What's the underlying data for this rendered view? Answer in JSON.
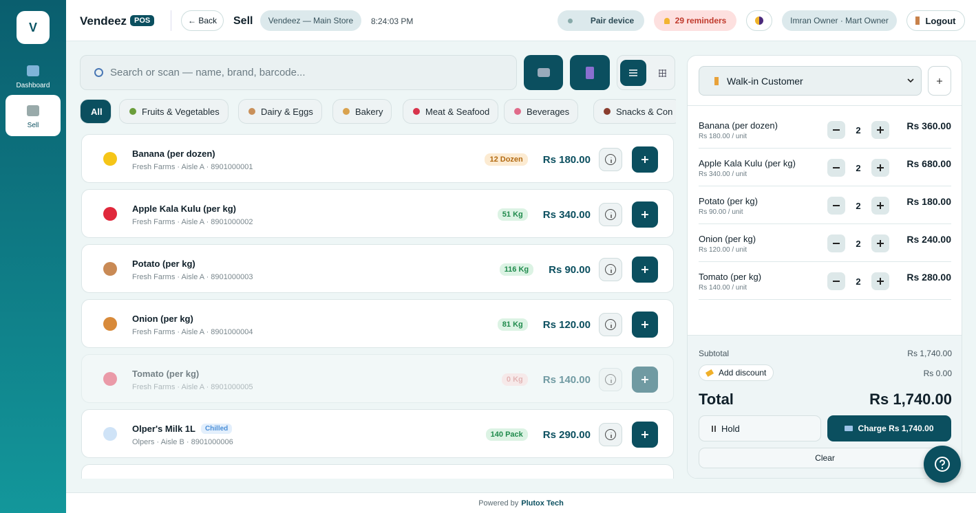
{
  "sidebar": {
    "logo": "V",
    "items": [
      {
        "label": "Dashboard"
      },
      {
        "label": "Sell"
      }
    ]
  },
  "header": {
    "brand": "Vendeez",
    "badge": "POS",
    "back": "← Back",
    "page": "Sell",
    "store": "Vendeez — Main Store",
    "time": "8:24:03 PM",
    "pair": "Pair device",
    "reminders": "29 reminders",
    "user": "Imran Owner · Mart Owner",
    "logout": "Logout"
  },
  "search": {
    "placeholder": "Search or scan — name, brand, barcode..."
  },
  "categories": [
    "All",
    "Fruits & Vegetables",
    "Dairy & Eggs",
    "Bakery",
    "Meat & Seafood",
    "Beverages",
    "Snacks & Con"
  ],
  "products": [
    {
      "name": "Banana (per dozen)",
      "meta": "Fresh Farms · Aisle A · 8901000001",
      "stock": "12 Dozen",
      "price": "Rs 180.00",
      "icon": "#f5c518"
    },
    {
      "name": "Apple Kala Kulu (per kg)",
      "meta": "Fresh Farms · Aisle A · 8901000002",
      "stock": "51 Kg",
      "price": "Rs 340.00",
      "icon": "#e0283b"
    },
    {
      "name": "Potato (per kg)",
      "meta": "Fresh Farms · Aisle A · 8901000003",
      "stock": "116 Kg",
      "price": "Rs 90.00",
      "icon": "#c98a55"
    },
    {
      "name": "Onion (per kg)",
      "meta": "Fresh Farms · Aisle A · 8901000004",
      "stock": "81 Kg",
      "price": "Rs 120.00",
      "icon": "#d88a3a"
    },
    {
      "name": "Tomato (per kg)",
      "meta": "Fresh Farms · Aisle A · 8901000005",
      "stock": "0 Kg",
      "price": "Rs 140.00",
      "icon": "#e8506a"
    },
    {
      "name": "Olper's Milk 1L",
      "tag": "Chilled",
      "meta": "Olpers · Aisle B · 8901000006",
      "stock": "140 Pack",
      "price": "Rs 290.00",
      "icon": "#cfe3f7"
    }
  ],
  "cart": {
    "customer": "Walk-in Customer",
    "items": [
      {
        "name": "Banana (per dozen)",
        "unit": "Rs 180.00 / unit",
        "qty": 2,
        "total": "Rs 360.00"
      },
      {
        "name": "Apple Kala Kulu (per kg)",
        "unit": "Rs 340.00 / unit",
        "qty": 2,
        "total": "Rs 680.00"
      },
      {
        "name": "Potato (per kg)",
        "unit": "Rs 90.00 / unit",
        "qty": 2,
        "total": "Rs 180.00"
      },
      {
        "name": "Onion (per kg)",
        "unit": "Rs 120.00 / unit",
        "qty": 2,
        "total": "Rs 240.00"
      },
      {
        "name": "Tomato (per kg)",
        "unit": "Rs 140.00 / unit",
        "qty": 2,
        "total": "Rs 280.00"
      }
    ],
    "subtotal_label": "Subtotal",
    "subtotal": "Rs 1,740.00",
    "discount_label": "Add discount",
    "discount": "Rs 0.00",
    "total_label": "Total",
    "total": "Rs 1,740.00",
    "hold": "Hold",
    "charge": "Charge Rs 1,740.00",
    "clear": "Clear"
  },
  "footer": {
    "prefix": "Powered by",
    "company": "Plutox Tech"
  }
}
